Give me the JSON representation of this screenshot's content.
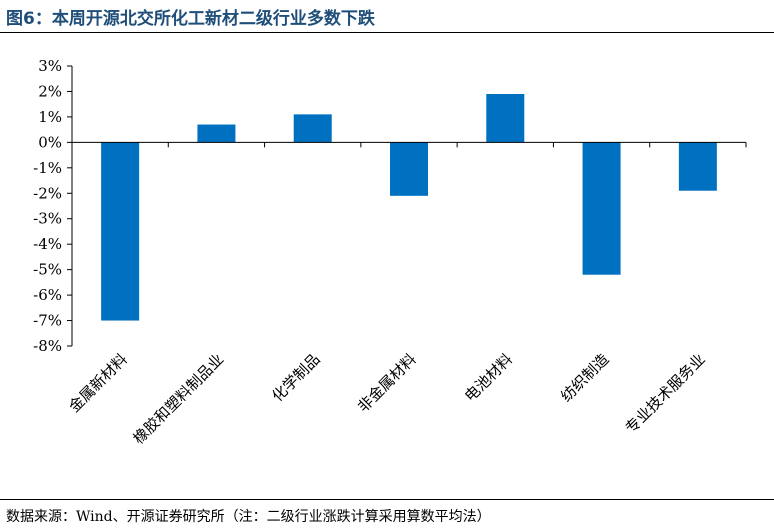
{
  "title": "图6：本周开源北交所化工新材二级行业多数下跌",
  "source": "数据来源：Wind、开源证券研究所（注：二级行业涨跌计算采用算数平均法）",
  "chart_data": {
    "type": "bar",
    "categories": [
      "金属新材料",
      "橡胶和塑料制品业",
      "化学制品",
      "非金属材料",
      "电池材料",
      "纺织制造",
      "专业技术服务业"
    ],
    "values": [
      -7.0,
      0.7,
      1.1,
      -2.1,
      1.9,
      -5.2,
      -1.9
    ],
    "ylim": [
      -8,
      3
    ],
    "yticks": [
      3,
      2,
      1,
      0,
      -1,
      -2,
      -3,
      -4,
      -5,
      -6,
      -7,
      -8
    ],
    "ytick_labels": [
      "3%",
      "2%",
      "1%",
      "0%",
      "-1%",
      "-2%",
      "-3%",
      "-4%",
      "-5%",
      "-6%",
      "-7%",
      "-8%"
    ],
    "bar_color": "#0070c0",
    "grid": false
  }
}
